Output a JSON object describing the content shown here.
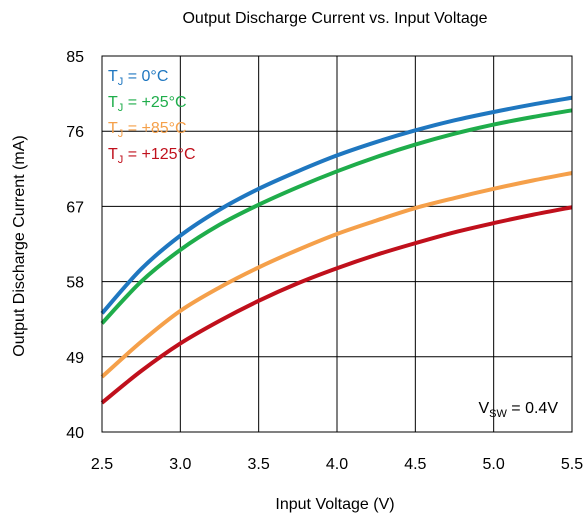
{
  "chart_data": {
    "type": "line",
    "title": "Output Discharge Current vs. Input Voltage",
    "xlabel": "Input Voltage (V)",
    "ylabel": "Output Discharge Current (mA)",
    "xlim": [
      2.5,
      5.5
    ],
    "ylim": [
      40,
      85
    ],
    "xticks": [
      "2.5",
      "3.0",
      "3.5",
      "4.0",
      "4.5",
      "5.0",
      "5.5"
    ],
    "yticks": [
      "40",
      "49",
      "58",
      "67",
      "76",
      "85"
    ],
    "grid": true,
    "legend_position": "top-left",
    "annotation": {
      "main": "V",
      "sub": "SW",
      "suffix": " = 0.4V"
    },
    "series": [
      {
        "name": "T = 0°C",
        "label_main": "T",
        "label_sub": "J",
        "label_suffix": " = 0°C",
        "color": "#1f77c0",
        "x": [
          2.5,
          2.75,
          3.0,
          3.25,
          3.5,
          3.75,
          4.0,
          4.25,
          4.5,
          4.75,
          5.0,
          5.25,
          5.5
        ],
        "y": [
          54.2,
          59.5,
          63.5,
          66.6,
          69.1,
          71.2,
          73.1,
          74.7,
          76.1,
          77.3,
          78.3,
          79.2,
          80.0
        ]
      },
      {
        "name": "T = +25°C",
        "label_main": "T",
        "label_sub": "J",
        "label_suffix": " = +25°C",
        "color": "#1fad4b",
        "x": [
          2.5,
          2.75,
          3.0,
          3.25,
          3.5,
          3.75,
          4.0,
          4.25,
          4.5,
          4.75,
          5.0,
          5.25,
          5.5
        ],
        "y": [
          53.0,
          58.0,
          61.8,
          64.8,
          67.2,
          69.3,
          71.2,
          72.9,
          74.4,
          75.7,
          76.8,
          77.7,
          78.5
        ]
      },
      {
        "name": "T = +85°C",
        "label_main": "T",
        "label_sub": "J",
        "label_suffix": " = +85°C",
        "color": "#f5a04a",
        "x": [
          2.5,
          2.75,
          3.0,
          3.25,
          3.5,
          3.75,
          4.0,
          4.25,
          4.5,
          4.75,
          5.0,
          5.25,
          5.5
        ],
        "y": [
          46.6,
          50.8,
          54.5,
          57.3,
          59.7,
          61.8,
          63.7,
          65.3,
          66.8,
          68.0,
          69.1,
          70.1,
          71.0
        ]
      },
      {
        "name": "T = +125°C",
        "label_main": "T",
        "label_sub": "J",
        "label_suffix": " = +125°C",
        "color": "#c0101c",
        "x": [
          2.5,
          2.75,
          3.0,
          3.25,
          3.5,
          3.75,
          4.0,
          4.25,
          4.5,
          4.75,
          5.0,
          5.25,
          5.5
        ],
        "y": [
          43.5,
          47.3,
          50.6,
          53.3,
          55.7,
          57.8,
          59.6,
          61.2,
          62.6,
          63.9,
          65.0,
          66.0,
          66.9
        ]
      }
    ]
  }
}
